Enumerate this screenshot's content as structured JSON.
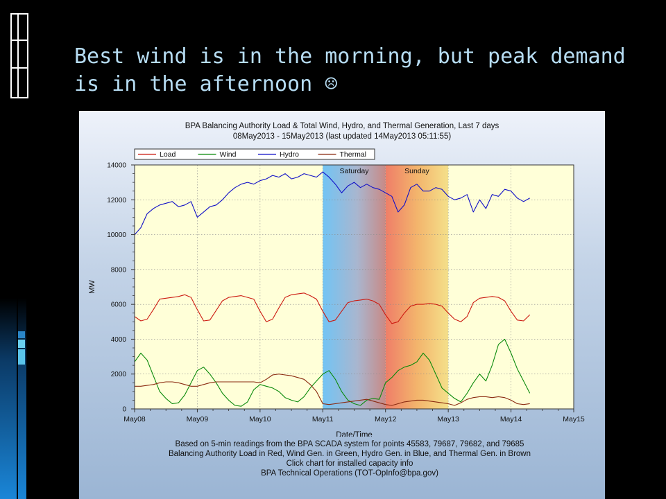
{
  "slide": {
    "title": "Best wind is in the morning, but peak demand is in the afternoon",
    "title_icon": "sad-face-icon"
  },
  "colors": {
    "title": "#b6dcf2",
    "load": "#cc1a10",
    "wind": "#0a8a0a",
    "hydro": "#1010c8",
    "thermal": "#8a2a10",
    "plot_bg": "#ffffd8",
    "saturday_band": "#7cc8f2",
    "sunday_band": "#f08a6a"
  },
  "chart_data": {
    "type": "line",
    "title": "BPA Balancing Authority Load & Total Wind, Hydro, and Thermal Generation, Last 7 days",
    "subtitle": "08May2013 - 15May2013 (last updated 14May2013 05:11:55)",
    "xlabel": "Date/Time",
    "ylabel": "MW",
    "x_ticks": [
      "May08",
      "May09",
      "May10",
      "May11",
      "May12",
      "May13",
      "May14",
      "May15"
    ],
    "y_ticks": [
      0,
      2000,
      4000,
      6000,
      8000,
      10000,
      12000,
      14000
    ],
    "xlim": [
      0,
      7
    ],
    "ylim": [
      0,
      14000
    ],
    "grid": true,
    "legend_position": "top-left",
    "bands": [
      {
        "label": "Saturday",
        "start": 3.0,
        "end": 4.0
      },
      {
        "label": "Sunday",
        "start": 4.0,
        "end": 5.0
      }
    ],
    "x_units": "days after May08 00:00",
    "series": [
      {
        "name": "Load",
        "x": [
          0,
          0.1,
          0.2,
          0.3,
          0.4,
          0.5,
          0.6,
          0.7,
          0.8,
          0.9,
          1.0,
          1.1,
          1.2,
          1.3,
          1.4,
          1.5,
          1.6,
          1.7,
          1.8,
          1.9,
          2.0,
          2.1,
          2.2,
          2.3,
          2.4,
          2.5,
          2.6,
          2.7,
          2.8,
          2.9,
          3.0,
          3.1,
          3.2,
          3.3,
          3.4,
          3.5,
          3.6,
          3.7,
          3.8,
          3.9,
          4.0,
          4.1,
          4.2,
          4.3,
          4.4,
          4.5,
          4.6,
          4.7,
          4.8,
          4.9,
          5.0,
          5.1,
          5.2,
          5.3,
          5.4,
          5.5,
          5.6,
          5.7,
          5.8,
          5.9,
          6.0,
          6.1,
          6.2,
          6.3
        ],
        "values": [
          5300,
          5050,
          5150,
          5700,
          6300,
          6350,
          6400,
          6450,
          6550,
          6400,
          5700,
          5050,
          5100,
          5650,
          6200,
          6400,
          6450,
          6500,
          6400,
          6300,
          5600,
          5000,
          5150,
          5800,
          6400,
          6550,
          6600,
          6650,
          6500,
          6300,
          5600,
          5000,
          5100,
          5600,
          6100,
          6200,
          6250,
          6300,
          6200,
          6000,
          5400,
          4900,
          5000,
          5500,
          5900,
          6000,
          6000,
          6050,
          6000,
          5900,
          5500,
          5150,
          5000,
          5300,
          6100,
          6350,
          6400,
          6450,
          6400,
          6200,
          5600,
          5100,
          5050,
          5400
        ]
      },
      {
        "name": "Wind",
        "x": [
          0,
          0.1,
          0.2,
          0.3,
          0.4,
          0.5,
          0.6,
          0.7,
          0.8,
          0.9,
          1.0,
          1.1,
          1.2,
          1.3,
          1.4,
          1.5,
          1.6,
          1.7,
          1.8,
          1.9,
          2.0,
          2.1,
          2.2,
          2.3,
          2.4,
          2.5,
          2.6,
          2.7,
          2.8,
          2.9,
          3.0,
          3.1,
          3.2,
          3.3,
          3.4,
          3.5,
          3.6,
          3.7,
          3.8,
          3.9,
          4.0,
          4.1,
          4.2,
          4.3,
          4.4,
          4.5,
          4.6,
          4.7,
          4.8,
          4.9,
          5.0,
          5.1,
          5.2,
          5.3,
          5.4,
          5.5,
          5.6,
          5.7,
          5.8,
          5.9,
          6.0,
          6.1,
          6.2,
          6.3
        ],
        "values": [
          2700,
          3200,
          2800,
          1900,
          1000,
          600,
          300,
          350,
          800,
          1500,
          2200,
          2400,
          2000,
          1500,
          900,
          500,
          200,
          150,
          400,
          1100,
          1400,
          1300,
          1200,
          1000,
          650,
          500,
          400,
          700,
          1200,
          1600,
          2000,
          2200,
          1700,
          1000,
          500,
          300,
          200,
          500,
          600,
          550,
          1500,
          1800,
          2200,
          2400,
          2500,
          2700,
          3200,
          2800,
          2000,
          1200,
          900,
          600,
          400,
          900,
          1500,
          2000,
          1600,
          2500,
          3700,
          4000,
          3200,
          2300,
          1600,
          900
        ]
      },
      {
        "name": "Hydro",
        "x": [
          0,
          0.1,
          0.2,
          0.3,
          0.4,
          0.5,
          0.6,
          0.7,
          0.8,
          0.9,
          1.0,
          1.1,
          1.2,
          1.3,
          1.4,
          1.5,
          1.6,
          1.7,
          1.8,
          1.9,
          2.0,
          2.1,
          2.2,
          2.3,
          2.4,
          2.5,
          2.6,
          2.7,
          2.8,
          2.9,
          3.0,
          3.1,
          3.2,
          3.3,
          3.4,
          3.5,
          3.6,
          3.7,
          3.8,
          3.9,
          4.0,
          4.1,
          4.2,
          4.3,
          4.4,
          4.5,
          4.6,
          4.7,
          4.8,
          4.9,
          5.0,
          5.1,
          5.2,
          5.3,
          5.4,
          5.5,
          5.6,
          5.7,
          5.8,
          5.9,
          6.0,
          6.1,
          6.2,
          6.3
        ],
        "values": [
          10000,
          10400,
          11200,
          11500,
          11700,
          11800,
          11900,
          11600,
          11700,
          11900,
          11000,
          11300,
          11600,
          11700,
          12000,
          12400,
          12700,
          12900,
          13000,
          12900,
          13100,
          13200,
          13400,
          13300,
          13500,
          13200,
          13300,
          13500,
          13400,
          13300,
          13600,
          13300,
          12900,
          12400,
          12800,
          13000,
          12700,
          12900,
          12700,
          12600,
          12400,
          12200,
          11300,
          11700,
          12700,
          12900,
          12500,
          12500,
          12700,
          12600,
          12200,
          12000,
          12100,
          12300,
          11300,
          12000,
          11500,
          12300,
          12200,
          12600,
          12500,
          12100,
          11900,
          12100
        ]
      },
      {
        "name": "Thermal",
        "x": [
          0,
          0.1,
          0.2,
          0.3,
          0.4,
          0.5,
          0.6,
          0.7,
          0.8,
          0.9,
          1.0,
          1.1,
          1.2,
          1.3,
          1.4,
          1.5,
          1.6,
          1.7,
          1.8,
          1.9,
          2.0,
          2.1,
          2.2,
          2.3,
          2.4,
          2.5,
          2.6,
          2.7,
          2.8,
          2.9,
          3.0,
          3.1,
          3.2,
          3.3,
          3.4,
          3.5,
          3.6,
          3.7,
          3.8,
          3.9,
          4.0,
          4.1,
          4.2,
          4.3,
          4.4,
          4.5,
          4.6,
          4.7,
          4.8,
          4.9,
          5.0,
          5.1,
          5.2,
          5.3,
          5.4,
          5.5,
          5.6,
          5.7,
          5.8,
          5.9,
          6.0,
          6.1,
          6.2,
          6.3
        ],
        "values": [
          1300,
          1300,
          1350,
          1400,
          1500,
          1550,
          1550,
          1500,
          1400,
          1300,
          1300,
          1400,
          1500,
          1550,
          1550,
          1550,
          1550,
          1550,
          1550,
          1550,
          1500,
          1700,
          1950,
          2000,
          1950,
          1900,
          1800,
          1700,
          1400,
          1000,
          300,
          250,
          300,
          350,
          400,
          450,
          500,
          550,
          450,
          350,
          250,
          200,
          300,
          400,
          450,
          500,
          500,
          450,
          400,
          350,
          300,
          200,
          350,
          550,
          650,
          700,
          700,
          650,
          700,
          650,
          500,
          300,
          250,
          300
        ]
      }
    ]
  },
  "footnote": {
    "line1": "Based on 5-min readings from the BPA SCADA system for points 45583, 79687, 79682, and 79685",
    "line2": "Balancing Authority Load in Red, Wind Gen. in Green, Hydro Gen. in Blue, and Thermal Gen. in Brown",
    "line3": "Click chart for installed capacity info",
    "line4": "BPA Technical Operations (TOT-OpInfo@bpa.gov)"
  }
}
